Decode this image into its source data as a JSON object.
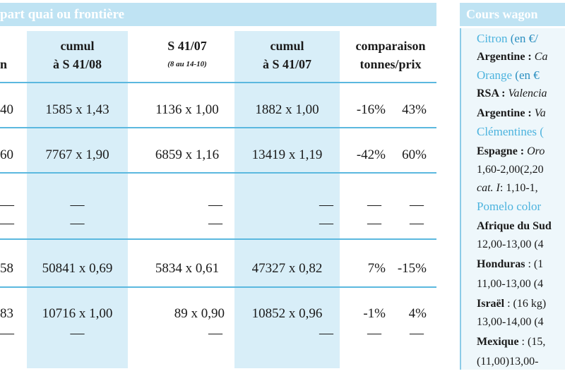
{
  "left": {
    "title": "part quai ou frontière",
    "headers": {
      "col0": "n",
      "col1_line1": "cumul",
      "col1_line2": "à S 41/08",
      "col2_line1": "S 41/07",
      "col2_line2": "(8 au 14-10)",
      "col3_line1": "cumul",
      "col3_line2": "à S 41/07",
      "col4_line1": "comparaison",
      "col4_line2": "tonnes/prix"
    },
    "rows": [
      {
        "c0": "40",
        "c1": "1585 x 1,43",
        "c2": "1136 x 1,00",
        "c3": "1882 x 1,00",
        "t": "-16%",
        "p": "43%"
      },
      {
        "c0": "60",
        "c1": "7767 x 1,90",
        "c2": "6859 x 1,16",
        "c3": "13419 x 1,19",
        "t": "-42%",
        "p": "60%"
      },
      {
        "c0": "—",
        "c1": "—",
        "c2": "—",
        "c3": "—",
        "t": "—",
        "p": "—"
      },
      {
        "c0": "—",
        "c1": "—",
        "c2": "—",
        "c3": "—",
        "t": "—",
        "p": "—"
      },
      {
        "c0": "58",
        "c1": "50841 x  0,69",
        "c2": "5834 x 0,61",
        "c3": "47327 x 0,82",
        "t": "7%",
        "p": "-15%"
      },
      {
        "c0": "83",
        "c1": "10716 x 1,00",
        "c2": "89 x 0,90",
        "c3": "10852 x 0,96",
        "t": "-1%",
        "p": "4%"
      },
      {
        "c0": "—",
        "c1": "—",
        "c2": "—",
        "c3": "—",
        "t": "—",
        "p": "—"
      }
    ]
  },
  "right": {
    "title": "Cours wagon",
    "lines": {
      "l1a": "Citron",
      "l1b": "(en €/",
      "l2a": "Argentine :",
      "l2b": "Ca",
      "l3a": "Orange",
      "l3b": "(en €",
      "l4a": "RSA :",
      "l4b": "Valencia",
      "l5a": "Argentine :",
      "l5b": "Va",
      "l6": "Clémentines (",
      "l7a": "Espagne :",
      "l7b": "Oro",
      "l8": "1,60-2,00(2,20",
      "l9a": "cat. I",
      "l9b": ": 1,10-1,",
      "l10": "Pomelo color",
      "l11": "Afrique du Sud",
      "l12": "12,00-13,00 (4",
      "l13a": "Honduras",
      "l13b": ": (1",
      "l14": "11,00-13,00 (4",
      "l15a": "Israël",
      "l15b": ": (16 kg)",
      "l16": "13,00-14,00 (4",
      "l17a": "Mexique",
      "l17b": ": (15,",
      "l18": "(11,00)13,00-"
    }
  }
}
